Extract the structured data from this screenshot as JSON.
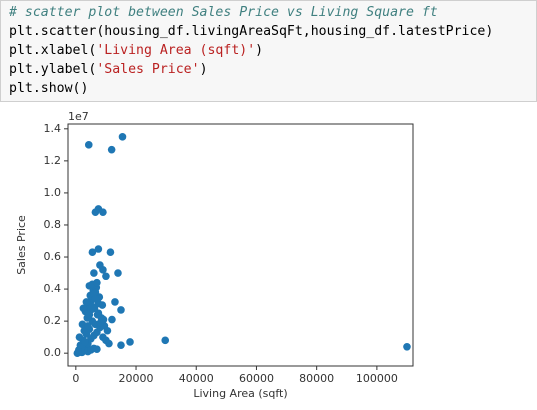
{
  "code": [
    [
      {
        "text": "# scatter plot between Sales Price vs Living Square ft",
        "color": "#408080",
        "italic": true
      }
    ],
    [
      {
        "text": "plt.scatter(housing_df.livingAreaSqFt,housing_df.latestPrice)",
        "color": "#000000"
      }
    ],
    [
      {
        "text": "plt.xlabel(",
        "color": "#000000"
      },
      {
        "text": "'Living Area (sqft)'",
        "color": "#ba2121"
      },
      {
        "text": ")",
        "color": "#000000"
      }
    ],
    [
      {
        "text": "plt.ylabel(",
        "color": "#000000"
      },
      {
        "text": "'Sales Price'",
        "color": "#ba2121"
      },
      {
        "text": ")",
        "color": "#000000"
      }
    ],
    [
      {
        "text": "plt.show()",
        "color": "#000000"
      }
    ]
  ],
  "chart_data": {
    "type": "scatter",
    "color": "#1f77b4",
    "x_label": "Living Area (sqft)",
    "y_label": "Sales Price",
    "y_offset_label": "1e7",
    "xlim": [
      -2600,
      112000
    ],
    "ylim": [
      -800000,
      14300000
    ],
    "xticks": [
      0,
      20000,
      40000,
      60000,
      80000,
      100000
    ],
    "yticks": [
      {
        "value": 0,
        "label": "0.0"
      },
      {
        "value": 2000000,
        "label": "0.2"
      },
      {
        "value": 4000000,
        "label": "0.4"
      },
      {
        "value": 6000000,
        "label": "0.6"
      },
      {
        "value": 8000000,
        "label": "0.8"
      },
      {
        "value": 10000000,
        "label": "1.0"
      },
      {
        "value": 12000000,
        "label": "1.2"
      },
      {
        "value": 14000000,
        "label": "1.4"
      }
    ],
    "x": [
      1000,
      1500,
      2000,
      2500,
      3000,
      3500,
      4000,
      4500,
      5000,
      5500,
      6000,
      6500,
      7000,
      7500,
      8000,
      8500,
      9000,
      9500,
      10000,
      10500,
      11000,
      1200,
      2200,
      3200,
      4200,
      5200,
      6200,
      7200,
      8200,
      9200,
      1800,
      2800,
      3800,
      4800,
      5800,
      6800,
      7800,
      8800,
      500,
      1000,
      2000,
      3000,
      4000,
      5000,
      6000,
      7000,
      2500,
      3500,
      4500,
      5500,
      6500,
      7500,
      3000,
      4000,
      5000,
      6000,
      7000,
      4500,
      5500,
      6500,
      4300,
      15500,
      11900,
      6500,
      7500,
      9000,
      5500,
      7500,
      11500,
      6000,
      8000,
      14000,
      9000,
      29700,
      18000,
      15000,
      110000,
      15000,
      12000,
      10000,
      13000
    ],
    "values": [
      200000,
      500000,
      300000,
      800000,
      400000,
      1200000,
      600000,
      1500000,
      900000,
      2000000,
      1100000,
      1800000,
      1300000,
      2500000,
      1600000,
      2200000,
      1000000,
      1700000,
      800000,
      1400000,
      600000,
      1000000,
      1800000,
      2600000,
      3000000,
      3300000,
      2800000,
      2400000,
      1900000,
      2100000,
      400000,
      1400000,
      2200000,
      3600000,
      3900000,
      4100000,
      3500000,
      3000000,
      0,
      100000,
      50000,
      150000,
      100000,
      200000,
      300000,
      250000,
      2800000,
      3200000,
      4200000,
      4300000,
      3800000,
      3100000,
      700000,
      1700000,
      2700000,
      3700000,
      4400000,
      2400000,
      2900000,
      3400000,
      13000000,
      13500000,
      12700000,
      8800000,
      9000000,
      8800000,
      6300000,
      6500000,
      6300000,
      5000000,
      5500000,
      5000000,
      5200000,
      800000,
      700000,
      500000,
      400000,
      2700000,
      2100000,
      4800000,
      3200000
    ]
  }
}
